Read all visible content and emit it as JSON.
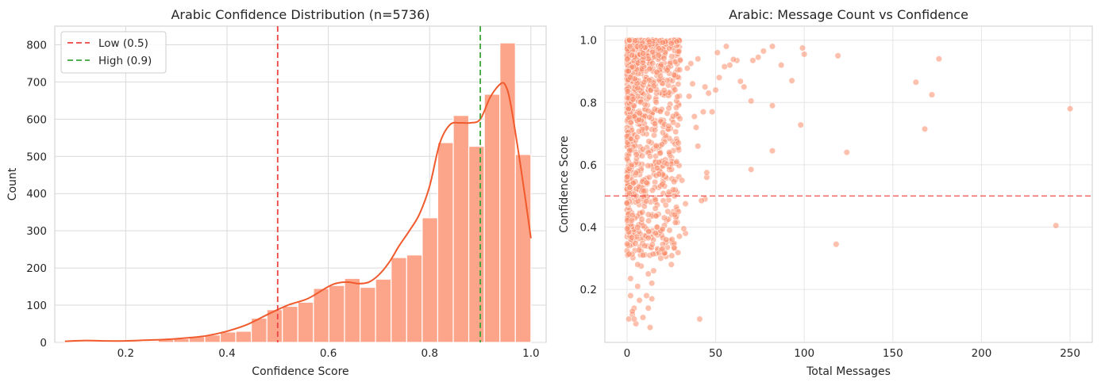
{
  "figure": {
    "bar_color": "#fca58a",
    "kde_color": "#f05a2c",
    "scatter_color": "#fc8d6a",
    "low_line_color": "#ef4444",
    "high_line_color": "#3aa43a"
  },
  "chart_data": [
    {
      "type": "bar",
      "title": "Arabic Confidence Distribution (n=5736)",
      "xlabel": "Confidence Score",
      "ylabel": "Count",
      "xlim": [
        0.06,
        1.03
      ],
      "ylim": [
        0,
        850
      ],
      "xticks": [
        0.2,
        0.4,
        0.6,
        0.8,
        1.0
      ],
      "xtick_labels": [
        "0.2",
        "0.4",
        "0.6",
        "0.8",
        "1.0"
      ],
      "yticks": [
        0,
        100,
        200,
        300,
        400,
        500,
        600,
        700,
        800
      ],
      "ytick_labels": [
        "0",
        "100",
        "200",
        "300",
        "400",
        "500",
        "600",
        "700",
        "800"
      ],
      "grid": true,
      "legend_position": "top-left",
      "bin_edges": [
        0.08,
        0.1107,
        0.1413,
        0.172,
        0.2027,
        0.2333,
        0.264,
        0.2947,
        0.3253,
        0.356,
        0.3867,
        0.4173,
        0.448,
        0.4787,
        0.5093,
        0.54,
        0.5707,
        0.6013,
        0.632,
        0.6627,
        0.6933,
        0.724,
        0.7547,
        0.7853,
        0.816,
        0.8467,
        0.8773,
        0.908,
        0.9387,
        0.9693,
        1.0
      ],
      "counts": [
        3,
        3,
        2,
        2,
        3,
        3,
        8,
        10,
        15,
        20,
        28,
        30,
        65,
        88,
        97,
        108,
        145,
        153,
        172,
        148,
        170,
        228,
        235,
        335,
        537,
        610,
        527,
        667,
        805,
        505
      ],
      "kde": {
        "x": [
          0.08,
          0.12,
          0.16,
          0.2,
          0.24,
          0.28,
          0.32,
          0.36,
          0.4,
          0.44,
          0.48,
          0.52,
          0.56,
          0.6,
          0.62,
          0.64,
          0.66,
          0.68,
          0.7,
          0.72,
          0.74,
          0.76,
          0.78,
          0.8,
          0.82,
          0.84,
          0.86,
          0.88,
          0.9,
          0.92,
          0.94,
          0.95,
          0.96,
          0.98,
          1.0
        ],
        "y": [
          3,
          5,
          4,
          4,
          6,
          8,
          12,
          18,
          30,
          48,
          75,
          100,
          118,
          150,
          160,
          162,
          158,
          162,
          182,
          215,
          260,
          300,
          345,
          420,
          535,
          585,
          590,
          590,
          600,
          660,
          695,
          690,
          640,
          470,
          280
        ]
      },
      "reference_lines": [
        {
          "x": 0.5,
          "label": "Low (0.5)"
        },
        {
          "x": 0.9,
          "label": "High (0.9)"
        }
      ]
    },
    {
      "type": "scatter",
      "title": "Arabic: Message Count vs Confidence",
      "xlabel": "Total Messages",
      "ylabel": "Confidence Score",
      "xlim": [
        -12.5,
        262.5
      ],
      "ylim": [
        0.03,
        1.045
      ],
      "xticks": [
        0,
        50,
        100,
        150,
        200,
        250
      ],
      "xtick_labels": [
        "0",
        "50",
        "100",
        "150",
        "200",
        "250"
      ],
      "yticks": [
        0.2,
        0.4,
        0.6,
        0.8,
        1.0
      ],
      "ytick_labels": [
        "0.2",
        "0.4",
        "0.6",
        "0.8",
        "1.0"
      ],
      "grid": true,
      "threshold_y": 0.5,
      "points": [
        [
          250,
          0.78
        ],
        [
          242,
          0.405
        ],
        [
          176,
          0.94
        ],
        [
          172,
          0.825
        ],
        [
          168,
          0.715
        ],
        [
          163,
          0.865
        ],
        [
          124,
          0.64
        ],
        [
          119,
          0.95
        ],
        [
          118,
          0.345
        ],
        [
          100,
          0.955
        ],
        [
          99,
          0.975
        ],
        [
          98,
          0.728
        ],
        [
          93,
          0.87
        ],
        [
          87,
          0.92
        ],
        [
          82,
          0.98
        ],
        [
          82,
          0.79
        ],
        [
          82,
          0.645
        ],
        [
          77,
          0.965
        ],
        [
          74,
          0.945
        ],
        [
          71,
          0.935
        ],
        [
          70,
          0.585
        ],
        [
          70,
          0.805
        ],
        [
          66,
          0.85
        ],
        [
          64,
          0.868
        ],
        [
          62,
          0.935
        ],
        [
          60,
          0.938
        ],
        [
          58,
          0.92
        ],
        [
          56,
          0.98
        ],
        [
          55,
          0.915
        ],
        [
          52,
          0.88
        ],
        [
          51,
          0.96
        ],
        [
          50,
          0.84
        ],
        [
          48,
          0.77
        ],
        [
          46,
          0.83
        ],
        [
          45,
          0.56
        ],
        [
          45,
          0.575
        ],
        [
          44,
          0.85
        ],
        [
          44,
          0.49
        ],
        [
          42,
          0.485
        ],
        [
          41,
          0.105
        ],
        [
          43,
          0.77
        ],
        [
          40,
          0.66
        ],
        [
          40,
          0.94
        ],
        [
          39,
          0.72
        ],
        [
          38,
          0.755
        ],
        [
          37,
          0.86
        ],
        [
          36,
          0.925
        ],
        [
          35,
          0.82
        ],
        [
          34,
          0.91
        ],
        [
          33,
          0.475
        ],
        [
          33,
          0.38
        ],
        [
          32,
          0.395
        ],
        [
          31,
          0.55
        ],
        [
          30,
          0.935
        ],
        [
          29,
          0.67
        ],
        [
          28,
          0.61
        ],
        [
          27,
          0.44
        ],
        [
          26,
          0.52
        ],
        [
          25,
          0.28
        ],
        [
          25,
          0.99
        ],
        [
          24,
          0.39
        ],
        [
          23,
          0.45
        ],
        [
          22,
          0.36
        ],
        [
          21,
          0.43
        ],
        [
          20,
          0.33
        ],
        [
          19,
          0.3
        ],
        [
          18,
          0.57
        ],
        [
          17,
          0.4
        ],
        [
          16,
          0.46
        ],
        [
          15,
          0.26
        ],
        [
          14,
          0.22
        ],
        [
          14,
          0.17
        ],
        [
          13,
          0.078
        ],
        [
          12,
          0.25
        ],
        [
          11,
          0.18
        ],
        [
          10,
          0.34
        ],
        [
          9,
          0.31
        ],
        [
          8,
          0.275
        ],
        [
          7,
          0.165
        ],
        [
          6,
          0.21
        ],
        [
          5,
          0.09
        ],
        [
          4,
          0.14
        ],
        [
          3,
          0.12
        ],
        [
          2,
          0.18
        ],
        [
          1,
          0.105
        ],
        [
          2,
          0.235
        ],
        [
          4,
          0.105
        ],
        [
          6,
          0.28
        ],
        [
          9,
          0.11
        ],
        [
          12,
          0.14
        ],
        [
          3,
          0.13
        ]
      ],
      "dense_cluster": {
        "x_range": [
          0,
          30
        ],
        "y_range": [
          0.3,
          1.0
        ],
        "count": 1000,
        "seed": 7
      }
    }
  ]
}
